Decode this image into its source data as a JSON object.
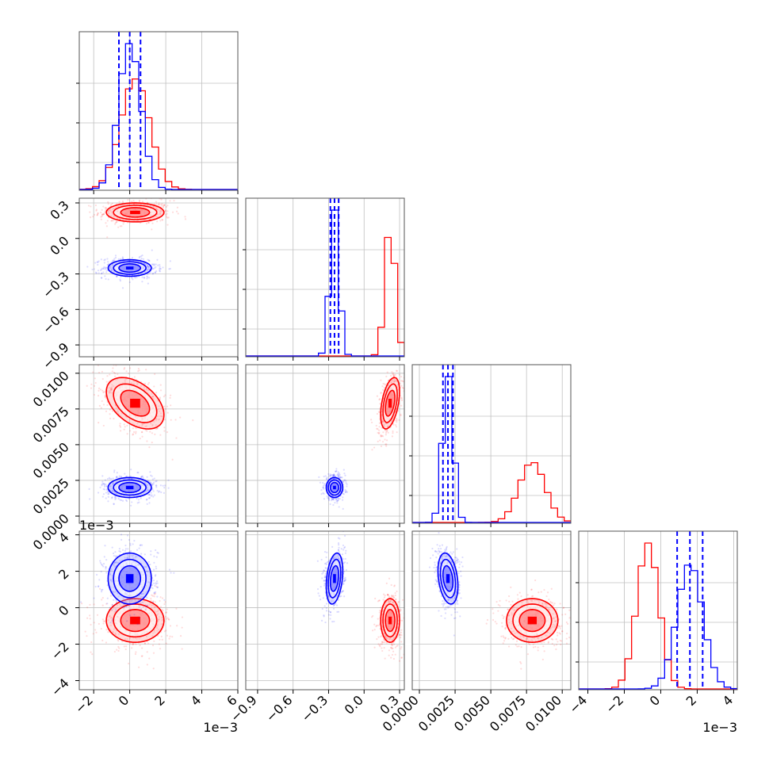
{
  "chart_data": {
    "type": "corner",
    "parameters": 4,
    "series": [
      {
        "color": "#ff0000",
        "means": [
          0.0003,
          0.22,
          0.0079,
          -0.0007
        ],
        "sds": [
          0.0008,
          0.04,
          0.0009,
          0.0006
        ],
        "correlations": [
          [
            1,
            0,
            -0.45,
            0
          ],
          [
            0,
            1,
            0.45,
            0
          ],
          [
            -0.45,
            0.45,
            1,
            0
          ],
          [
            0,
            0,
            0,
            1
          ]
        ]
      },
      {
        "color": "#0000ff",
        "means": [
          0.0,
          -0.25,
          0.002,
          0.0016
        ],
        "sds": [
          0.0006,
          0.035,
          0.00035,
          0.0007
        ],
        "correlations": [
          [
            1,
            0,
            0,
            0
          ],
          [
            0,
            1,
            0,
            0.3
          ],
          [
            0,
            0,
            1,
            -0.3
          ],
          [
            0,
            0.3,
            -0.3,
            1
          ]
        ],
        "quantile_lines": true
      }
    ],
    "quantiles": [
      0.16,
      0.5,
      0.84
    ],
    "contour_levels": [
      "1-sigma",
      "1.5-sigma",
      "2-sigma"
    ],
    "axes": [
      {
        "range": [
          -0.0028,
          0.006
        ],
        "ticks": [
          -0.002,
          0,
          0.002,
          0.004,
          0.006
        ],
        "tick_labels": [
          "−2",
          "0",
          "2",
          "4",
          "6"
        ],
        "offset_label": "1e−3"
      },
      {
        "range": [
          -1.0,
          0.34
        ],
        "ticks": [
          -0.9,
          -0.6,
          -0.3,
          0.0,
          0.3
        ],
        "tick_labels": [
          "−0.9",
          "−0.6",
          "−0.3",
          "0.0",
          "0.3"
        ],
        "offset_label": ""
      },
      {
        "range": [
          -0.0005,
          0.0106
        ],
        "ticks": [
          0.0,
          0.0025,
          0.005,
          0.0075,
          0.01
        ],
        "tick_labels": [
          "0.0000",
          "0.0025",
          "0.0050",
          "0.0075",
          "0.0100"
        ],
        "offset_label": ""
      },
      {
        "range": [
          -0.0045,
          0.0042
        ],
        "ticks": [
          -0.004,
          -0.002,
          0,
          0.002,
          0.004
        ],
        "tick_labels": [
          "−4",
          "−2",
          "0",
          "2",
          "4"
        ],
        "offset_label": "1e−3"
      }
    ],
    "grid": true,
    "title": "",
    "xlabel": "",
    "ylabel": ""
  }
}
